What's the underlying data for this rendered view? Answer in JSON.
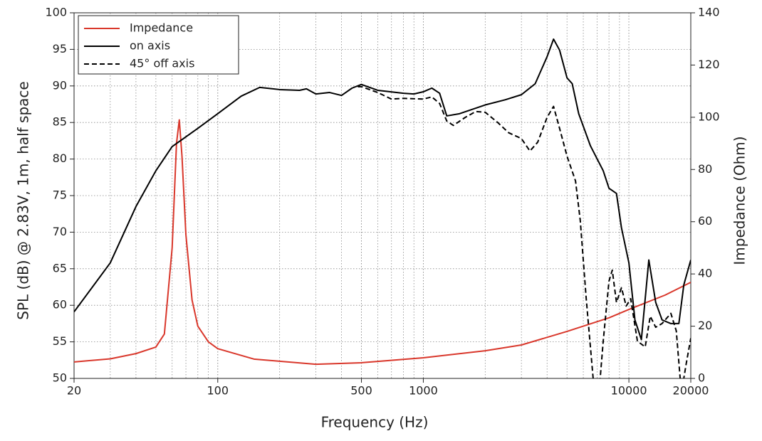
{
  "chart_data": {
    "type": "line",
    "xlabel": "Frequency (Hz)",
    "ylabel": "SPL (dB) @ 2.83V, 1m, half space",
    "y2label": "Impedance (Ohm)",
    "xscale": "log",
    "xlim": [
      20,
      20000
    ],
    "xticks": [
      20,
      100,
      500,
      1000,
      10000,
      20000
    ],
    "ylim": [
      50,
      100
    ],
    "yticks": [
      50,
      55,
      60,
      65,
      70,
      75,
      80,
      85,
      90,
      95,
      100
    ],
    "y2lim": [
      0,
      140
    ],
    "y2ticks": [
      0,
      20,
      40,
      60,
      80,
      100,
      120,
      140
    ],
    "grid": true,
    "legend": "upper left",
    "series": [
      {
        "name": "Impedance",
        "color": "#d9372b",
        "axis": "y2",
        "dash": false,
        "x": [
          20,
          30,
          40,
          50,
          55,
          60,
          63,
          65,
          67,
          70,
          75,
          80,
          90,
          100,
          150,
          300,
          500,
          1000,
          2000,
          3000,
          5000,
          8000,
          10000,
          15000,
          20000
        ],
        "values": [
          6.3,
          7.5,
          9.5,
          12,
          17,
          50,
          90,
          99,
          85,
          55,
          30,
          20,
          14,
          11.4,
          7.4,
          5.4,
          6,
          7.9,
          10.6,
          12.8,
          18,
          23.2,
          26.4,
          31.9,
          36.8
        ]
      },
      {
        "name": "on axis",
        "color": "#000000",
        "dash": false,
        "x": [
          20,
          30,
          40,
          50,
          60,
          80,
          100,
          130,
          160,
          200,
          250,
          270,
          300,
          350,
          400,
          450,
          500,
          600,
          800,
          900,
          1000,
          1100,
          1200,
          1300,
          1500,
          2000,
          2500,
          3000,
          3500,
          4000,
          4300,
          4600,
          5000,
          5300,
          5700,
          6500,
          7500,
          8000,
          8700,
          9200,
          10000,
          10700,
          11500,
          12500,
          13500,
          14500,
          16000,
          17500,
          18500,
          20000
        ],
        "values": [
          59.1,
          65.8,
          73.5,
          78.4,
          81.7,
          84.2,
          86.2,
          88.6,
          89.8,
          89.5,
          89.4,
          89.6,
          88.9,
          89.1,
          88.7,
          89.7,
          90.2,
          89.4,
          89.0,
          88.9,
          89.2,
          89.7,
          89.0,
          85.9,
          86.2,
          87.4,
          88.1,
          88.8,
          90.3,
          94.0,
          96.4,
          94.9,
          91.1,
          90.3,
          86.2,
          81.8,
          78.4,
          76.0,
          75.3,
          70.6,
          65.8,
          58.0,
          55.3,
          66.2,
          60.4,
          58.0,
          57.5,
          57.5,
          62.8,
          66.2
        ]
      },
      {
        "name": "45° off axis",
        "color": "#000000",
        "dash": true,
        "x": [
          480,
          500,
          600,
          700,
          800,
          1000,
          1100,
          1200,
          1300,
          1400,
          1600,
          1800,
          2000,
          2300,
          2600,
          3000,
          3300,
          3600,
          4000,
          4300,
          4600,
          5000,
          5500,
          5800,
          6200,
          6700,
          6800,
          7200,
          7500,
          8000,
          8300,
          8700,
          9200,
          9700,
          10200,
          11000,
          12000,
          12700,
          13500,
          14500,
          16000,
          17000,
          18000,
          19000,
          20000
        ],
        "values": [
          89.9,
          89.9,
          89.1,
          88.2,
          88.3,
          88.2,
          88.5,
          87.6,
          85.2,
          84.6,
          85.7,
          86.5,
          86.4,
          85.0,
          83.6,
          82.8,
          81.1,
          82.3,
          85.7,
          87.2,
          84.2,
          80.4,
          77.0,
          71.6,
          60.9,
          50,
          48,
          49,
          55.1,
          63.3,
          64.8,
          60.4,
          62.4,
          59.9,
          60.9,
          55.1,
          54.3,
          58.5,
          57.0,
          57.5,
          58.9,
          56.5,
          48,
          52,
          55.5
        ]
      }
    ]
  }
}
